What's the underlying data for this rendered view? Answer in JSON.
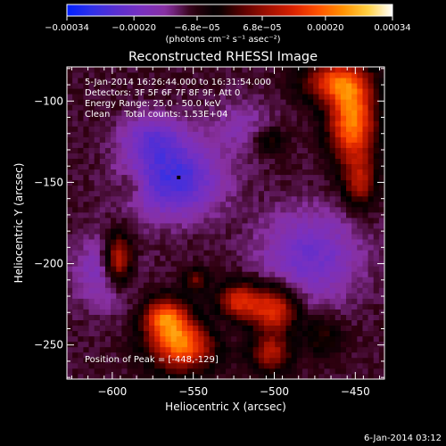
{
  "chart_data": {
    "type": "heatmap",
    "title": "Reconstructed RHESSI Image",
    "xlabel": "Heliocentric X (arcsec)",
    "ylabel": "Heliocentric Y (arcsec)",
    "xlim": [
      -628,
      -432
    ],
    "ylim": [
      -271,
      -79
    ],
    "x_ticks": [
      -600,
      -550,
      -500,
      -450
    ],
    "x_tick_labels": [
      "−600",
      "−550",
      "−500",
      "−450"
    ],
    "y_ticks": [
      -250,
      -200,
      -150,
      -100
    ],
    "y_tick_labels": [
      "−250",
      "−200",
      "−150",
      "−100"
    ],
    "colorbar": {
      "range": [
        -0.00034,
        0.00034
      ],
      "ticks": [
        -0.00034,
        -0.0002,
        -6.8e-05,
        6.8e-05,
        0.0002,
        0.00034
      ],
      "tick_labels": [
        "−0.00034",
        "−0.00020",
        "−6.8e−05",
        "6.8e−05",
        "0.00020",
        "0.00034"
      ],
      "unit_label": "(photons cm⁻² s⁻¹ asec⁻²)"
    },
    "info_lines": [
      "5-Jan-2014 16:26:44.000 to 16:31:54.000",
      "Detectors: 3F 5F 6F 7F 8F 9F, Att 0",
      "Energy Range: 25.0 - 50.0 keV",
      "Clean     Total counts: 1.53E+04"
    ],
    "peak_label": "Position of Peak = [-448,-129]",
    "peak_marker": [
      -559,
      -147
    ],
    "footer": "6-Jan-2014 03:12",
    "colormap_stops": [
      "#0020ff",
      "#3030e8",
      "#5a2fd0",
      "#7a30c0",
      "#8830a0",
      "#300010",
      "#000000",
      "#5a0000",
      "#a01000",
      "#d82000",
      "#ff5000",
      "#ff9000",
      "#ffd040",
      "#ffffff"
    ],
    "grid": false,
    "legend": "none",
    "features": [
      {
        "x": -562,
        "y": -148,
        "sx": 20,
        "sy": 16,
        "a": -0.00018
      },
      {
        "x": -575,
        "y": -122,
        "sx": 14,
        "sy": 10,
        "a": -0.00011
      },
      {
        "x": -478,
        "y": -195,
        "sx": 22,
        "sy": 20,
        "a": -0.00012
      },
      {
        "x": -605,
        "y": -205,
        "sx": 14,
        "sy": 16,
        "a": -9e-05
      },
      {
        "x": -540,
        "y": -238,
        "sx": 12,
        "sy": 8,
        "a": -6e-05
      },
      {
        "x": -520,
        "y": -115,
        "sx": 14,
        "sy": 12,
        "a": -6e-05
      },
      {
        "x": -452,
        "y": -112,
        "sx": 10,
        "sy": 18,
        "a": 0.00031
      },
      {
        "x": -463,
        "y": -88,
        "sx": 14,
        "sy": 9,
        "a": 0.00022
      },
      {
        "x": -447,
        "y": -150,
        "sx": 7,
        "sy": 11,
        "a": 0.00016
      },
      {
        "x": -557,
        "y": -248,
        "sx": 14,
        "sy": 12,
        "a": 0.00031
      },
      {
        "x": -568,
        "y": -232,
        "sx": 9,
        "sy": 8,
        "a": 0.00022
      },
      {
        "x": -596,
        "y": -197,
        "sx": 6,
        "sy": 11,
        "a": 0.00025
      },
      {
        "x": -548,
        "y": -210,
        "sx": 5,
        "sy": 5,
        "a": 0.00012
      },
      {
        "x": -522,
        "y": -223,
        "sx": 9,
        "sy": 8,
        "a": 0.00022
      },
      {
        "x": -500,
        "y": -228,
        "sx": 10,
        "sy": 10,
        "a": 0.00024
      },
      {
        "x": -502,
        "y": -255,
        "sx": 9,
        "sy": 8,
        "a": 0.00017
      },
      {
        "x": -503,
        "y": -124,
        "sx": 7,
        "sy": 6,
        "a": 9e-05
      },
      {
        "x": -588,
        "y": -152,
        "sx": 6,
        "sy": 6,
        "a": 6e-05
      },
      {
        "x": -470,
        "y": -245,
        "sx": 8,
        "sy": 8,
        "a": 9e-05
      }
    ]
  }
}
